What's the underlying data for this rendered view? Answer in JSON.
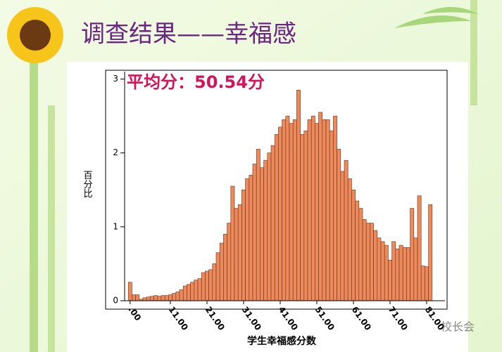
{
  "chart_data": {
    "type": "histogram",
    "title": "调查结果——幸福感",
    "annotation": "平均分：50.54分",
    "x_label": "学生幸福感分数",
    "y_label": "百分比",
    "watermark": "校长会",
    "color": "#ec8a5c",
    "edge_color": "#6b3018",
    "bins": [
      -0.5,
      0.5,
      1.5,
      2.5,
      3.5,
      4.5,
      5.5,
      6.5,
      7.5,
      8.5,
      9.5,
      10.5,
      11.5,
      12.5,
      13.5,
      14.5,
      15.5,
      16.5,
      17.5,
      18.5,
      19.5,
      20.5,
      21.5,
      22.5,
      23.5,
      24.5,
      25.5,
      26.5,
      27.5,
      28.5,
      29.5,
      30.5,
      31.5,
      32.5,
      33.5,
      34.5,
      35.5,
      36.5,
      37.5,
      38.5,
      39.5,
      40.5,
      41.5,
      42.5,
      43.5,
      44.5,
      45.5,
      46.5,
      47.5,
      48.5,
      49.5,
      50.5,
      51.5,
      52.5,
      53.5,
      54.5,
      55.5,
      56.5,
      57.5,
      58.5,
      59.5,
      60.5,
      61.5,
      62.5,
      63.5,
      64.5,
      65.5,
      66.5,
      67.5,
      68.5,
      69.5,
      70.5,
      71.5,
      72.5,
      73.5,
      74.5,
      75.5,
      76.5,
      77.5,
      78.5,
      79.5,
      80.5,
      81.5,
      82.5
    ],
    "values": [
      0.25,
      0.08,
      0.08,
      0.02,
      0.04,
      0.05,
      0.06,
      0.07,
      0.06,
      0.07,
      0.07,
      0.08,
      0.1,
      0.12,
      0.15,
      0.2,
      0.22,
      0.25,
      0.28,
      0.3,
      0.38,
      0.4,
      0.42,
      0.5,
      0.65,
      0.78,
      0.9,
      1.05,
      1.55,
      1.25,
      1.3,
      1.5,
      1.65,
      1.7,
      1.85,
      2.05,
      1.8,
      1.9,
      2.0,
      2.1,
      2.25,
      2.35,
      2.45,
      2.5,
      2.4,
      2.45,
      2.85,
      2.25,
      2.3,
      2.45,
      2.5,
      2.4,
      2.55,
      2.45,
      2.45,
      2.3,
      2.5,
      2.05,
      1.75,
      1.9,
      1.65,
      1.5,
      1.35,
      1.25,
      1.1,
      1.05,
      1.05,
      0.95,
      0.85,
      0.8,
      0.75,
      0.55,
      0.8,
      0.7,
      0.75,
      0.72,
      0.72,
      1.25,
      0.85,
      1.42,
      0.47,
      0.46,
      1.3
    ],
    "xlim": [
      -1.5,
      86
    ],
    "ylim": [
      0,
      3.1
    ],
    "xticks": [
      {
        "value": 0,
        "label": ".00"
      },
      {
        "value": 11,
        "label": "11.00"
      },
      {
        "value": 21,
        "label": "21.00"
      },
      {
        "value": 31,
        "label": "31.00"
      },
      {
        "value": 41,
        "label": "41.00"
      },
      {
        "value": 51,
        "label": "51.00"
      },
      {
        "value": 61,
        "label": "61.00"
      },
      {
        "value": 71,
        "label": "71.00"
      },
      {
        "value": 81,
        "label": "81.00"
      }
    ],
    "yticks": [
      0,
      1,
      2,
      3
    ]
  }
}
